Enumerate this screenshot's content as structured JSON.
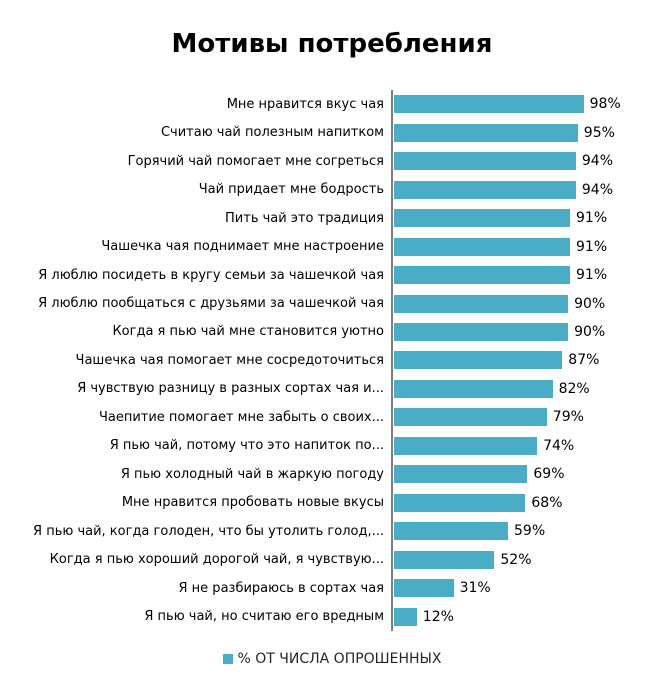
{
  "title": "Мотивы потребления",
  "legend": {
    "label": "% ОТ ЧИСЛА ОПРОШЕННЫХ",
    "swatch_color": "#4BACC6"
  },
  "colors": {
    "bar": "#4BACC6",
    "axis": "#808080",
    "text": "#000000"
  },
  "chart_data": {
    "type": "bar",
    "orientation": "horizontal",
    "title": "Мотивы потребления",
    "categories": [
      "Мне нравится вкус чая",
      "Считаю чай полезным напитком",
      "Горячий чай помогает мне согреться",
      "Чай придает мне бодрость",
      "Пить чай это традиция",
      "Чашечка чая поднимает мне настроение",
      "Я люблю  посидеть в кругу семьи за чашечкой чая",
      "Я люблю пообщаться с друзьями за чашечкой чая",
      "Когда я пью чай мне становится уютно",
      "Чашечка чая помогает мне сосредоточиться",
      "Я чувствую разницу в разных сортах чая и...",
      "Чаепитие помогает мне забыть о своих...",
      "Я пью чай, потому что это напиток по...",
      "Я пью холодный чай в жаркую погоду",
      "Мне нравится пробовать новые вкусы",
      "Я пью чай, когда голоден, что бы утолить голод,...",
      "Когда я пью хороший дорогой чай, я чувствую...",
      "Я  не разбираюсь в сортах чая",
      "Я пью чай, но считаю его вредным"
    ],
    "values": [
      98,
      95,
      94,
      94,
      91,
      91,
      91,
      90,
      90,
      87,
      82,
      79,
      74,
      69,
      68,
      59,
      52,
      31,
      12
    ],
    "value_suffix": "%",
    "xlim": [
      0,
      100
    ],
    "data_labels": true,
    "grid": false,
    "legend_entries": [
      "% ОТ ЧИСЛА ОПРОШЕННЫХ"
    ],
    "legend_position": "bottom"
  }
}
